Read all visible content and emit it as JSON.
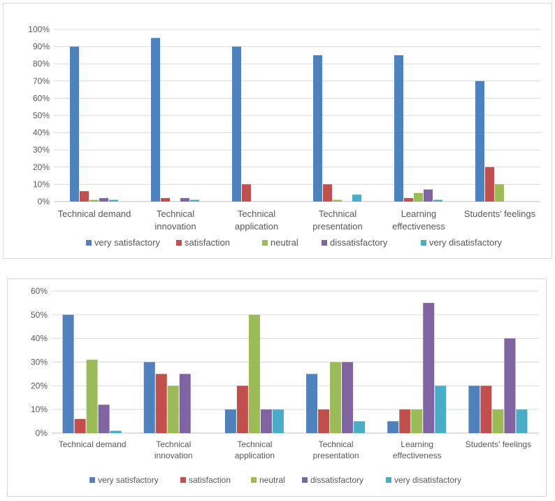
{
  "colors": {
    "very satisfactory": "#4f81bd",
    "satisfaction": "#c0504d",
    "neutral": "#9bbb59",
    "dissatisfactory": "#8064a2",
    "very disatisfactory": "#4bacc6",
    "grid": "#d9d9d9",
    "text": "#595959"
  },
  "chart_data": [
    {
      "type": "bar",
      "title": "",
      "xlabel": "",
      "ylabel": "",
      "ylim": [
        0,
        100
      ],
      "yticks": [
        "0%",
        "10%",
        "20%",
        "30%",
        "40%",
        "50%",
        "60%",
        "70%",
        "80%",
        "90%",
        "100%"
      ],
      "grid": true,
      "legend_position": "bottom",
      "categories": [
        [
          "Technical demand"
        ],
        [
          "Technical",
          "innovation"
        ],
        [
          "Technical",
          "application"
        ],
        [
          "Technical",
          "presentation"
        ],
        [
          "Learning",
          "effectiveness"
        ],
        [
          "Students' feelings"
        ]
      ],
      "series": [
        {
          "name": "very satisfactory",
          "values": [
            90,
            95,
            90,
            85,
            85,
            70
          ]
        },
        {
          "name": "satisfaction",
          "values": [
            6,
            2,
            10,
            10,
            2,
            20
          ]
        },
        {
          "name": "neutral",
          "values": [
            1,
            0,
            0,
            1,
            5,
            10
          ]
        },
        {
          "name": "dissatisfactory",
          "values": [
            2,
            2,
            0,
            0,
            7,
            0
          ]
        },
        {
          "name": "very disatisfactory",
          "values": [
            1,
            1,
            0,
            4,
            1,
            0
          ]
        }
      ]
    },
    {
      "type": "bar",
      "title": "",
      "xlabel": "",
      "ylabel": "",
      "ylim": [
        0,
        60
      ],
      "yticks": [
        "0%",
        "10%",
        "20%",
        "30%",
        "40%",
        "50%",
        "60%"
      ],
      "grid": true,
      "legend_position": "bottom",
      "categories": [
        [
          "Technical demand"
        ],
        [
          "Technical",
          "innovation"
        ],
        [
          "Technical",
          "application"
        ],
        [
          "Technical",
          "presentation"
        ],
        [
          "Learning",
          "effectiveness"
        ],
        [
          "Students' feelings"
        ]
      ],
      "series": [
        {
          "name": "very satisfactory",
          "values": [
            50,
            30,
            10,
            25,
            5,
            20
          ]
        },
        {
          "name": "satisfaction",
          "values": [
            6,
            25,
            20,
            10,
            10,
            20
          ]
        },
        {
          "name": "neutral",
          "values": [
            31,
            20,
            50,
            30,
            10,
            10
          ]
        },
        {
          "name": "dissatisfactory",
          "values": [
            12,
            25,
            10,
            30,
            55,
            40
          ]
        },
        {
          "name": "very disatisfactory",
          "values": [
            1,
            0,
            10,
            5,
            20,
            10
          ]
        }
      ]
    }
  ]
}
